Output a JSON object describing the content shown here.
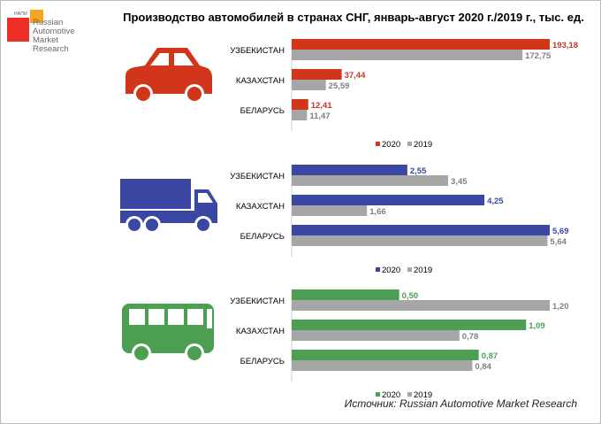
{
  "title": "Производство автомобилей в странах СНГ, январь-август 2020 г./2019 г., тыс. ед.",
  "logo": {
    "small_text": "НАПИ",
    "text": "Russian\nAutomotive\nMarket\nResearch",
    "registered": "®",
    "colors": {
      "red": "#ee2d24",
      "orange": "#f7a520"
    }
  },
  "source": "Источник: Russian Automotive Market Research",
  "chart_data": [
    {
      "type": "bar",
      "orientation": "horizontal",
      "icon": "car-icon",
      "categories": [
        "УЗБЕКИСТАН",
        "КАЗАХСТАН",
        "БЕЛАРУСЬ"
      ],
      "series": [
        {
          "name": "2020",
          "color": "#d1361a",
          "label_color": "#c0392b",
          "values": [
            193.18,
            37.44,
            12.41
          ],
          "labels": [
            "193,18",
            "37,44",
            "12,41"
          ]
        },
        {
          "name": "2019",
          "color": "#a6a6a6",
          "label_color": "#7f7f7f",
          "values": [
            172.75,
            25.59,
            11.47
          ],
          "labels": [
            "172,75",
            "25,59",
            "11,47"
          ]
        }
      ],
      "xlim": [
        0,
        193.18
      ],
      "legend": "bottom"
    },
    {
      "type": "bar",
      "orientation": "horizontal",
      "icon": "truck-icon",
      "categories": [
        "УЗБЕКИСТАН",
        "КАЗАХСТАН",
        "БЕЛАРУСЬ"
      ],
      "series": [
        {
          "name": "2020",
          "color": "#3b48a3",
          "label_color": "#3b48a3",
          "values": [
            2.55,
            4.25,
            5.69
          ],
          "labels": [
            "2,55",
            "4,25",
            "5,69"
          ]
        },
        {
          "name": "2019",
          "color": "#a6a6a6",
          "label_color": "#7f7f7f",
          "values": [
            3.45,
            1.66,
            5.64
          ],
          "labels": [
            "3,45",
            "1,66",
            "5,64"
          ]
        }
      ],
      "xlim": [
        0,
        5.69
      ],
      "legend": "bottom"
    },
    {
      "type": "bar",
      "orientation": "horizontal",
      "icon": "bus-icon",
      "categories": [
        "УЗБЕКИСТАН",
        "КАЗАХСТАН",
        "БЕЛАРУСЬ"
      ],
      "series": [
        {
          "name": "2020",
          "color": "#4c9f52",
          "label_color": "#4c9f52",
          "values": [
            0.5,
            1.09,
            0.87
          ],
          "labels": [
            "0,50",
            "1,09",
            "0,87"
          ]
        },
        {
          "name": "2019",
          "color": "#a6a6a6",
          "label_color": "#7f7f7f",
          "values": [
            1.2,
            0.78,
            0.84
          ],
          "labels": [
            "1,20",
            "0,78",
            "0,84"
          ]
        }
      ],
      "xlim": [
        0,
        1.2
      ],
      "legend": "bottom"
    }
  ]
}
